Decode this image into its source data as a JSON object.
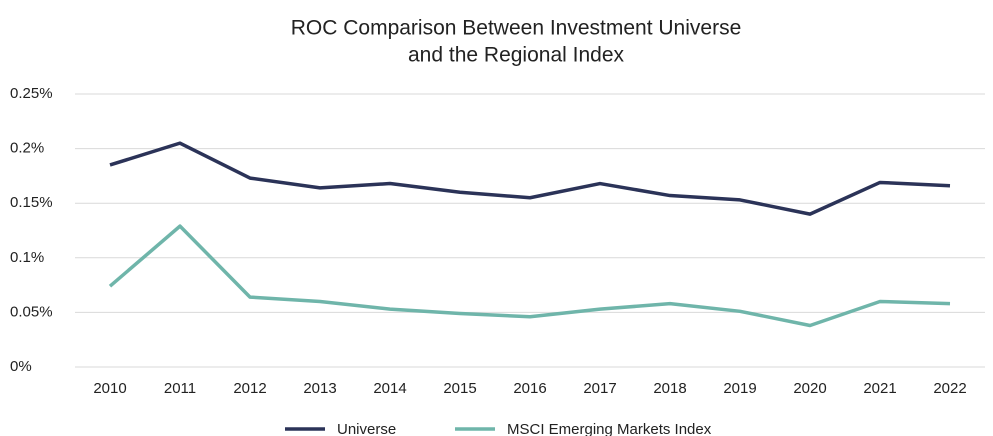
{
  "chart_data": {
    "type": "line",
    "title": [
      "ROC Comparison Between Investment Universe",
      "and the Regional Index"
    ],
    "categories": [
      "2010",
      "2011",
      "2012",
      "2013",
      "2014",
      "2015",
      "2016",
      "2017",
      "2018",
      "2019",
      "2020",
      "2021",
      "2022"
    ],
    "series": [
      {
        "name": "Universe",
        "color": "#2b3358",
        "values": [
          0.185,
          0.205,
          0.173,
          0.164,
          0.168,
          0.16,
          0.155,
          0.168,
          0.157,
          0.153,
          0.14,
          0.169,
          0.166
        ]
      },
      {
        "name": "MSCI Emerging Markets Index",
        "color": "#6fb5aa",
        "values": [
          0.074,
          0.129,
          0.064,
          0.06,
          0.053,
          0.049,
          0.046,
          0.053,
          0.058,
          0.051,
          0.038,
          0.06,
          0.058
        ]
      }
    ],
    "ylim": [
      0,
      0.25
    ],
    "yticks": [
      {
        "value": 0,
        "label": "0%"
      },
      {
        "value": 0.05,
        "label": "0.05%"
      },
      {
        "value": 0.1,
        "label": "0.1%"
      },
      {
        "value": 0.15,
        "label": "0.15%"
      },
      {
        "value": 0.2,
        "label": "0.2%"
      },
      {
        "value": 0.25,
        "label": "0.25%"
      }
    ],
    "grid": true,
    "legend": "bottom"
  }
}
